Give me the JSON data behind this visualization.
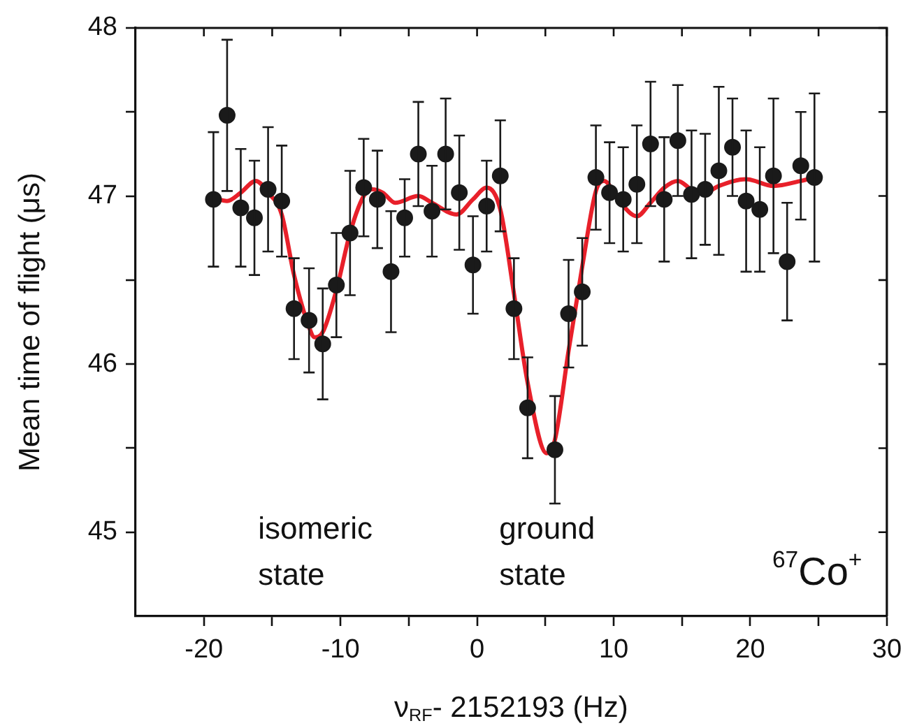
{
  "chart_data": {
    "type": "scatter",
    "xlabel": "ν$_{RF}$- 2152193 (Hz)",
    "ylabel": "Mean time of flight (μs)",
    "xlim": [
      -25,
      30
    ],
    "ylim": [
      44.5,
      48
    ],
    "xticks": [
      -20,
      {
        "value": -15,
        "label": null
      },
      -10,
      {
        "value": -5,
        "label": null
      },
      0,
      {
        "value": 5,
        "label": null
      },
      10,
      {
        "value": 15,
        "label": null
      },
      20,
      {
        "value": 25,
        "label": null
      },
      30
    ],
    "yticks": [
      {
        "value": 45,
        "label": "45"
      },
      {
        "value": 45.5,
        "label": null
      },
      {
        "value": 46,
        "label": "46"
      },
      {
        "value": 46.5,
        "label": null
      },
      {
        "value": 47,
        "label": "47"
      },
      {
        "value": 47.5,
        "label": null
      },
      {
        "value": 48,
        "label": "48"
      }
    ],
    "grid": false,
    "legend": false,
    "series": [
      {
        "type": "scatter",
        "marker": "circle",
        "color": "#1a1a1a",
        "x": [
          -19.3,
          -18.3,
          -17.3,
          -16.3,
          -15.3,
          -14.3,
          -13.4,
          -12.3,
          -11.3,
          -10.3,
          -9.3,
          -8.3,
          -7.3,
          -6.3,
          -5.3,
          -4.3,
          -3.3,
          -2.3,
          -1.3,
          -0.3,
          0.7,
          1.7,
          2.7,
          3.7,
          5.7,
          6.7,
          7.7,
          8.7,
          9.7,
          10.7,
          11.7,
          12.7,
          13.7,
          14.7,
          15.7,
          16.7,
          17.7,
          18.7,
          19.7,
          20.7,
          21.7,
          22.7,
          23.7,
          24.7
        ],
        "values": [
          46.98,
          47.48,
          46.93,
          46.87,
          47.04,
          46.97,
          46.33,
          46.26,
          46.12,
          46.47,
          46.78,
          47.05,
          46.98,
          46.55,
          46.87,
          47.25,
          46.91,
          47.25,
          47.02,
          46.59,
          46.94,
          47.12,
          46.33,
          45.74,
          45.49,
          46.3,
          46.43,
          47.11,
          47.02,
          46.98,
          47.07,
          47.31,
          46.98,
          47.33,
          47.01,
          47.04,
          47.15,
          47.29,
          46.97,
          46.92,
          47.12,
          46.61,
          47.18,
          47.11
        ],
        "errors": [
          0.4,
          0.45,
          0.35,
          0.34,
          0.37,
          0.33,
          0.3,
          0.31,
          0.33,
          0.31,
          0.37,
          0.29,
          0.29,
          0.36,
          0.23,
          0.31,
          0.27,
          0.33,
          0.34,
          0.29,
          0.27,
          0.33,
          0.3,
          0.3,
          0.32,
          0.32,
          0.32,
          0.31,
          0.3,
          0.31,
          0.35,
          0.37,
          0.37,
          0.33,
          0.38,
          0.33,
          0.5,
          0.29,
          0.42,
          0.37,
          0.46,
          0.35,
          0.32,
          0.5
        ]
      },
      {
        "type": "line",
        "color": "#e8202a",
        "x": [
          -19.3,
          -18.3,
          -17.3,
          -16.2,
          -15.3,
          -14.3,
          -13.4,
          -12.3,
          -11.9,
          -11.3,
          -10.3,
          -9.3,
          -8.3,
          -7.7,
          -6.9,
          -6.0,
          -4.3,
          -3.3,
          -1.5,
          -0.3,
          0.7,
          1.7,
          2.7,
          3.7,
          5.1,
          5.7,
          6.7,
          7.7,
          8.7,
          9.3,
          10.4,
          11.7,
          12.7,
          13.7,
          14.7,
          15.7,
          16.7,
          17.7,
          19.7,
          21.7,
          23.7,
          24.7
        ],
        "values": [
          46.99,
          46.97,
          47.02,
          47.09,
          47.02,
          46.89,
          46.53,
          46.22,
          46.16,
          46.19,
          46.44,
          46.78,
          47.0,
          47.04,
          47.02,
          46.96,
          47.0,
          46.96,
          46.89,
          46.98,
          47.05,
          46.92,
          46.42,
          45.89,
          45.47,
          45.55,
          46.08,
          46.58,
          47.03,
          47.09,
          46.97,
          46.88,
          46.96,
          47.05,
          47.09,
          47.04,
          47.02,
          47.06,
          47.1,
          47.06,
          47.09,
          47.11
        ]
      }
    ],
    "annotations": [
      "isomeric\nstate",
      "ground\nstate",
      "$^{67}$Co$^{+}$"
    ]
  }
}
